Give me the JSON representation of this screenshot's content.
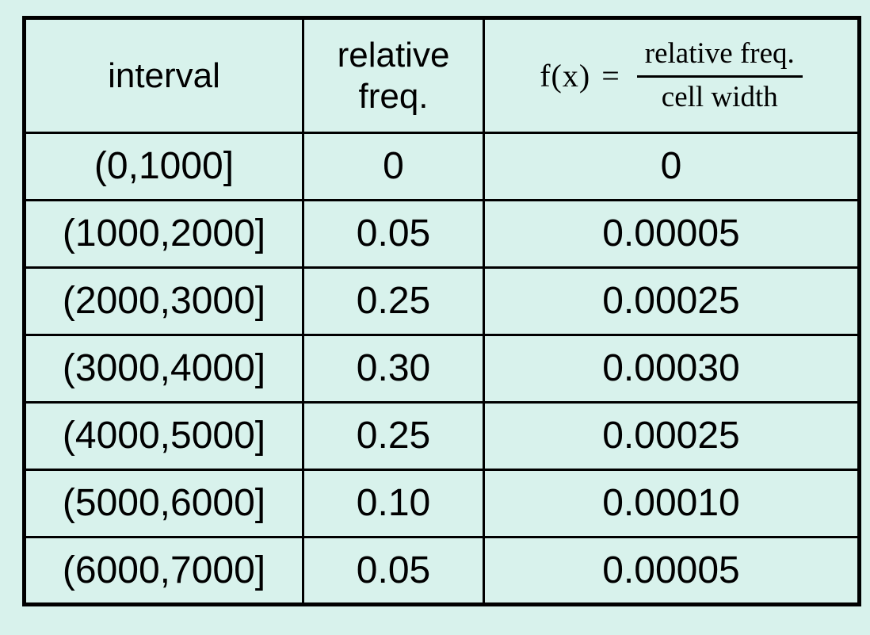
{
  "page": {
    "background_color": "#d8f2ec",
    "border_color": "#000000",
    "text_color": "#000000"
  },
  "table": {
    "headers": {
      "col1": "interval",
      "col2": "relative freq.",
      "formula": {
        "lhs": "f(x)",
        "equals": "=",
        "numerator": "relative freq.",
        "denominator": "cell width"
      }
    },
    "rows": [
      {
        "interval": "(0,1000]",
        "rel_freq": "0",
        "fx": "0"
      },
      {
        "interval": "(1000,2000]",
        "rel_freq": "0.05",
        "fx": "0.00005"
      },
      {
        "interval": "(2000,3000]",
        "rel_freq": "0.25",
        "fx": "0.00025"
      },
      {
        "interval": "(3000,4000]",
        "rel_freq": "0.30",
        "fx": "0.00030"
      },
      {
        "interval": "(4000,5000]",
        "rel_freq": "0.25",
        "fx": "0.00025"
      },
      {
        "interval": "(5000,6000]",
        "rel_freq": "0.10",
        "fx": "0.00010"
      },
      {
        "interval": "(6000,7000]",
        "rel_freq": "0.05",
        "fx": "0.00005"
      }
    ]
  },
  "chart_data": {
    "type": "table",
    "title": "",
    "columns": [
      "interval",
      "relative freq.",
      "f(x) = relative freq. / cell width"
    ],
    "rows": [
      [
        "(0,1000]",
        0,
        0
      ],
      [
        "(1000,2000]",
        0.05,
        5e-05
      ],
      [
        "(2000,3000]",
        0.25,
        0.00025
      ],
      [
        "(3000,4000]",
        0.3,
        0.0003
      ],
      [
        "(4000,5000]",
        0.25,
        0.00025
      ],
      [
        "(5000,6000]",
        0.1,
        0.0001
      ],
      [
        "(6000,7000]",
        0.05,
        5e-05
      ]
    ]
  }
}
